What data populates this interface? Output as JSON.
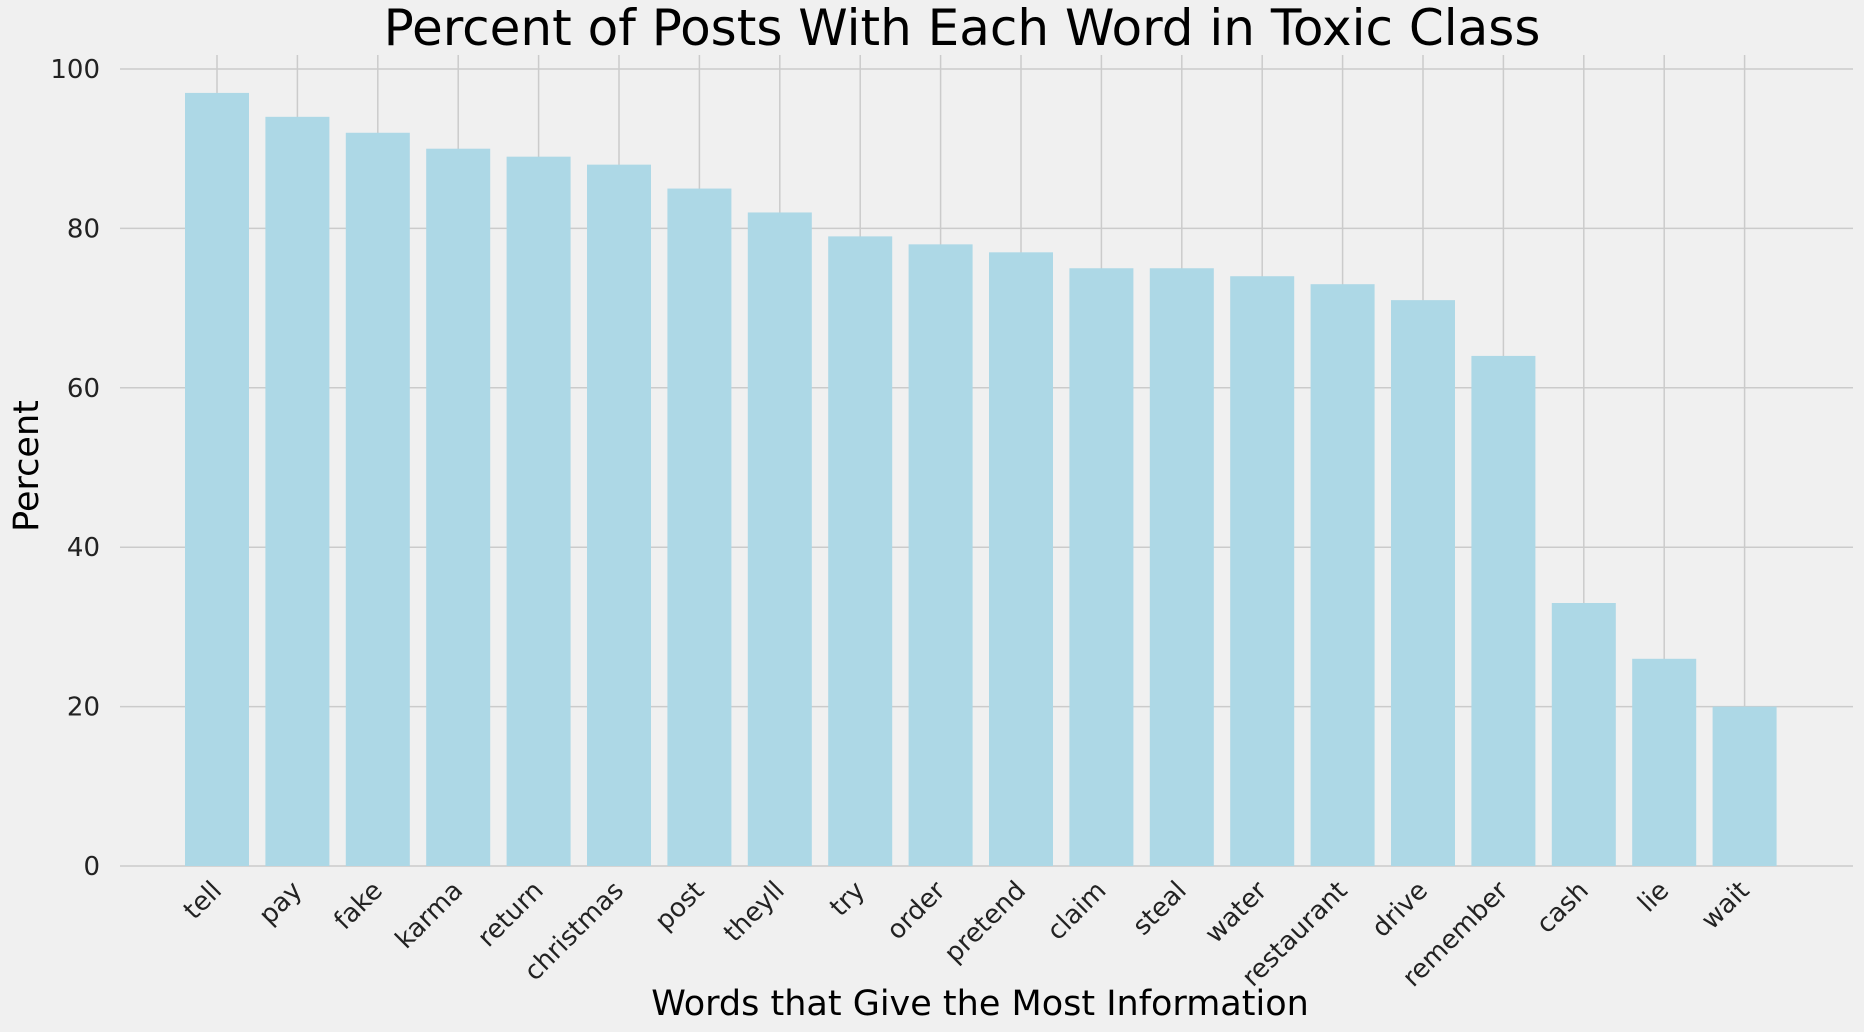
{
  "chart_data": {
    "type": "bar",
    "title": "Percent of Posts With Each Word in Toxic Class",
    "xlabel": "Words that Give the Most Information",
    "ylabel": "Percent",
    "categories": [
      "tell",
      "pay",
      "fake",
      "karma",
      "return",
      "christmas",
      "post",
      "theyll",
      "try",
      "order",
      "pretend",
      "claim",
      "steal",
      "water",
      "restaurant",
      "drive",
      "remember",
      "cash",
      "lie",
      "wait"
    ],
    "values": [
      97,
      94,
      92,
      90,
      89,
      88,
      85,
      82,
      79,
      78,
      77,
      75,
      75,
      74,
      73,
      71,
      64,
      33,
      26,
      20
    ],
    "ylim": [
      0,
      100
    ],
    "yticks": [
      0,
      20,
      40,
      60,
      80,
      100
    ],
    "grid": true,
    "bar_color": "#add8e6",
    "background_color": "#f0f0f0"
  }
}
